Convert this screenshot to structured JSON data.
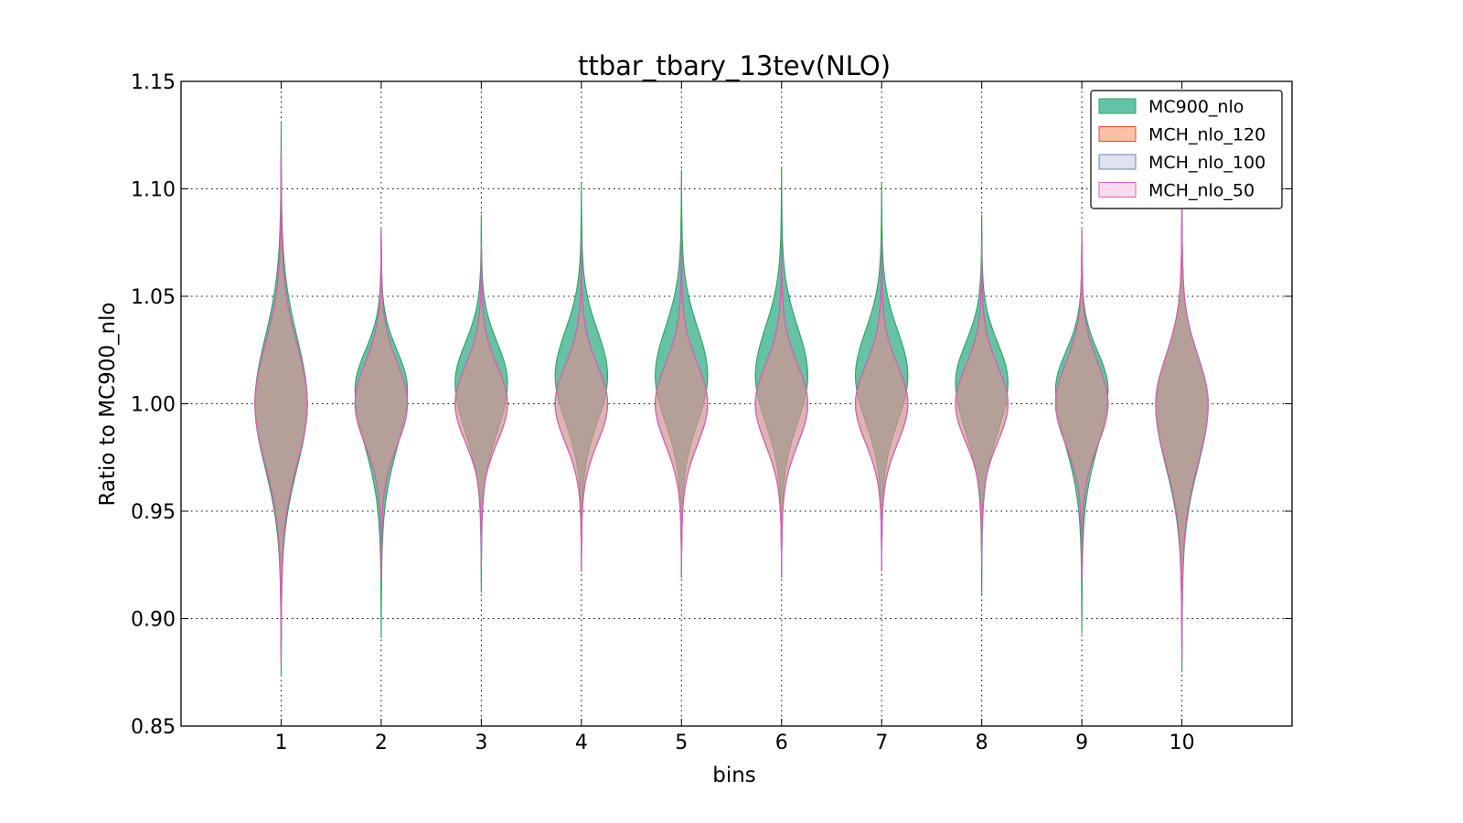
{
  "chart_data": {
    "type": "violin",
    "title": "ttbar_tbary_13tev(NLO)",
    "xlabel": "bins",
    "ylabel": "Ratio to MC900_nlo",
    "ylim": [
      0.85,
      1.15
    ],
    "yticks": [
      "0.85",
      "0.90",
      "0.95",
      "1.00",
      "1.05",
      "1.10",
      "1.15"
    ],
    "xlim": [
      0,
      11.1
    ],
    "categories": [
      "1",
      "2",
      "3",
      "4",
      "5",
      "6",
      "7",
      "8",
      "9",
      "10"
    ],
    "grid": true,
    "legend_position": "top-right",
    "series": [
      {
        "name": "MC900_nlo",
        "color": "#66c2a5",
        "edge": "#2ca25f",
        "opacity": 1.0,
        "min": [
          0.873,
          0.891,
          0.912,
          0.922,
          0.92,
          0.92,
          0.922,
          0.911,
          0.893,
          0.875
        ],
        "max": [
          1.131,
          1.082,
          1.088,
          1.103,
          1.109,
          1.11,
          1.103,
          1.088,
          1.08,
          1.095
        ],
        "shoulder_w": [
          0.5,
          0.5,
          0.5,
          0.5,
          0.5,
          0.5,
          0.5,
          0.5,
          0.5,
          0.5
        ],
        "shoulder_y": [
          1.0,
          1.007,
          1.01,
          1.013,
          1.013,
          1.013,
          1.013,
          1.01,
          1.007,
          1.0
        ]
      },
      {
        "name": "MCH_nlo_120",
        "color": "#fc8d62",
        "edge": "#e34a33",
        "opacity": 0.55,
        "min": [
          0.88,
          0.918,
          0.924,
          0.922,
          0.919,
          0.919,
          0.922,
          0.924,
          0.918,
          0.88
        ],
        "max": [
          1.117,
          1.081,
          1.075,
          1.077,
          1.079,
          1.078,
          1.076,
          1.075,
          1.081,
          1.095
        ],
        "shoulder_w": [
          0.5,
          0.5,
          0.5,
          0.5,
          0.5,
          0.5,
          0.5,
          0.5,
          0.5,
          0.5
        ],
        "shoulder_y": [
          1.0,
          1.0,
          1.0,
          1.0,
          1.0,
          1.0,
          1.0,
          1.0,
          1.0,
          1.0
        ]
      },
      {
        "name": "MCH_nlo_100",
        "color": "#8da0cb",
        "edge": "#6e83b8",
        "opacity": 0.25,
        "min": [
          0.88,
          0.918,
          0.924,
          0.922,
          0.919,
          0.919,
          0.922,
          0.924,
          0.918,
          0.88
        ],
        "max": [
          1.117,
          1.081,
          1.075,
          1.077,
          1.079,
          1.078,
          1.076,
          1.075,
          1.081,
          1.095
        ],
        "shoulder_w": [
          0.5,
          0.5,
          0.5,
          0.5,
          0.5,
          0.5,
          0.5,
          0.5,
          0.5,
          0.5
        ],
        "shoulder_y": [
          1.0,
          1.0,
          1.0,
          1.0,
          1.0,
          1.0,
          1.0,
          1.0,
          1.0,
          1.0
        ]
      },
      {
        "name": "MCH_nlo_50",
        "color": "#e78ac3",
        "edge": "#d95fb4",
        "opacity": 0.12,
        "min": [
          0.88,
          0.918,
          0.924,
          0.922,
          0.919,
          0.919,
          0.922,
          0.924,
          0.918,
          0.88
        ],
        "max": [
          1.117,
          1.081,
          1.075,
          1.077,
          1.079,
          1.078,
          1.076,
          1.075,
          1.081,
          1.095
        ],
        "shoulder_w": [
          0.5,
          0.5,
          0.5,
          0.5,
          0.5,
          0.5,
          0.5,
          0.5,
          0.5,
          0.5
        ],
        "shoulder_y": [
          1.0,
          1.0,
          1.0,
          1.0,
          1.0,
          1.0,
          1.0,
          1.0,
          1.0,
          1.0
        ]
      }
    ]
  }
}
